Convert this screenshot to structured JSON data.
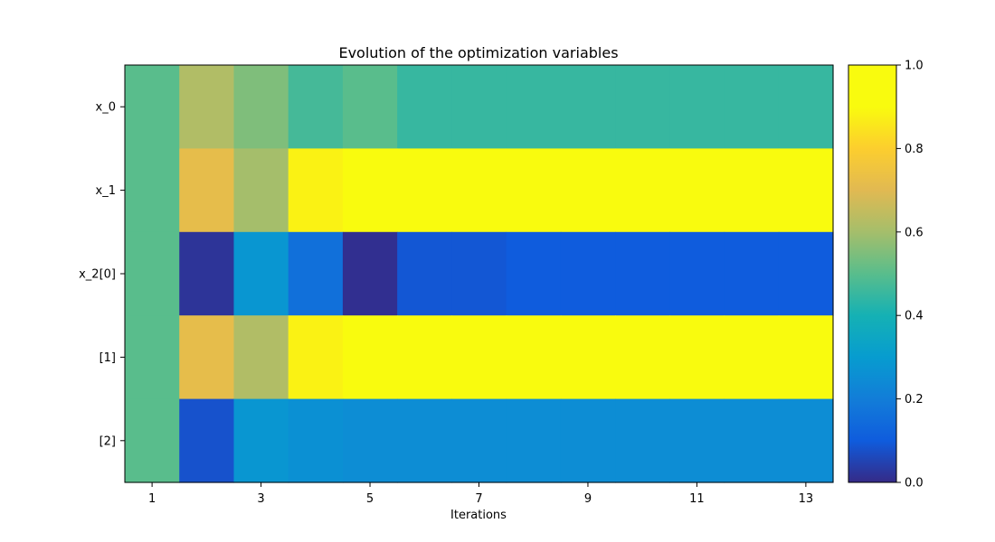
{
  "chart_data": {
    "type": "heatmap",
    "title": "Evolution of the optimization variables",
    "xlabel": "Iterations",
    "ylabel": "",
    "x": [
      1,
      2,
      3,
      4,
      5,
      6,
      7,
      8,
      9,
      10,
      11,
      12,
      13
    ],
    "x_ticks": [
      "1",
      "3",
      "5",
      "7",
      "9",
      "11",
      "13"
    ],
    "y_labels": [
      "x_0",
      "x_1",
      "x_2[0]",
      "[1]",
      "[2]"
    ],
    "colorbar": {
      "range": [
        0.0,
        1.0
      ],
      "ticks": [
        "0.0",
        "0.2",
        "0.4",
        "0.6",
        "0.8",
        "1.0"
      ]
    },
    "values": [
      [
        0.5,
        0.62,
        0.55,
        0.47,
        0.5,
        0.45,
        0.45,
        0.45,
        0.45,
        0.45,
        0.45,
        0.45,
        0.45
      ],
      [
        0.5,
        0.72,
        0.6,
        0.88,
        1.0,
        1.0,
        1.0,
        1.0,
        1.0,
        1.0,
        1.0,
        1.0,
        1.0
      ],
      [
        0.5,
        0.02,
        0.28,
        0.16,
        0.01,
        0.09,
        0.09,
        0.1,
        0.1,
        0.1,
        0.1,
        0.1,
        0.1
      ],
      [
        0.5,
        0.72,
        0.62,
        0.88,
        0.98,
        0.98,
        0.95,
        0.95,
        0.95,
        0.95,
        0.95,
        0.95,
        0.95
      ],
      [
        0.5,
        0.08,
        0.28,
        0.26,
        0.25,
        0.25,
        0.25,
        0.25,
        0.25,
        0.25,
        0.25,
        0.25,
        0.25
      ]
    ],
    "colormap": "parula",
    "grid": false,
    "legend": "colorbar-right"
  }
}
